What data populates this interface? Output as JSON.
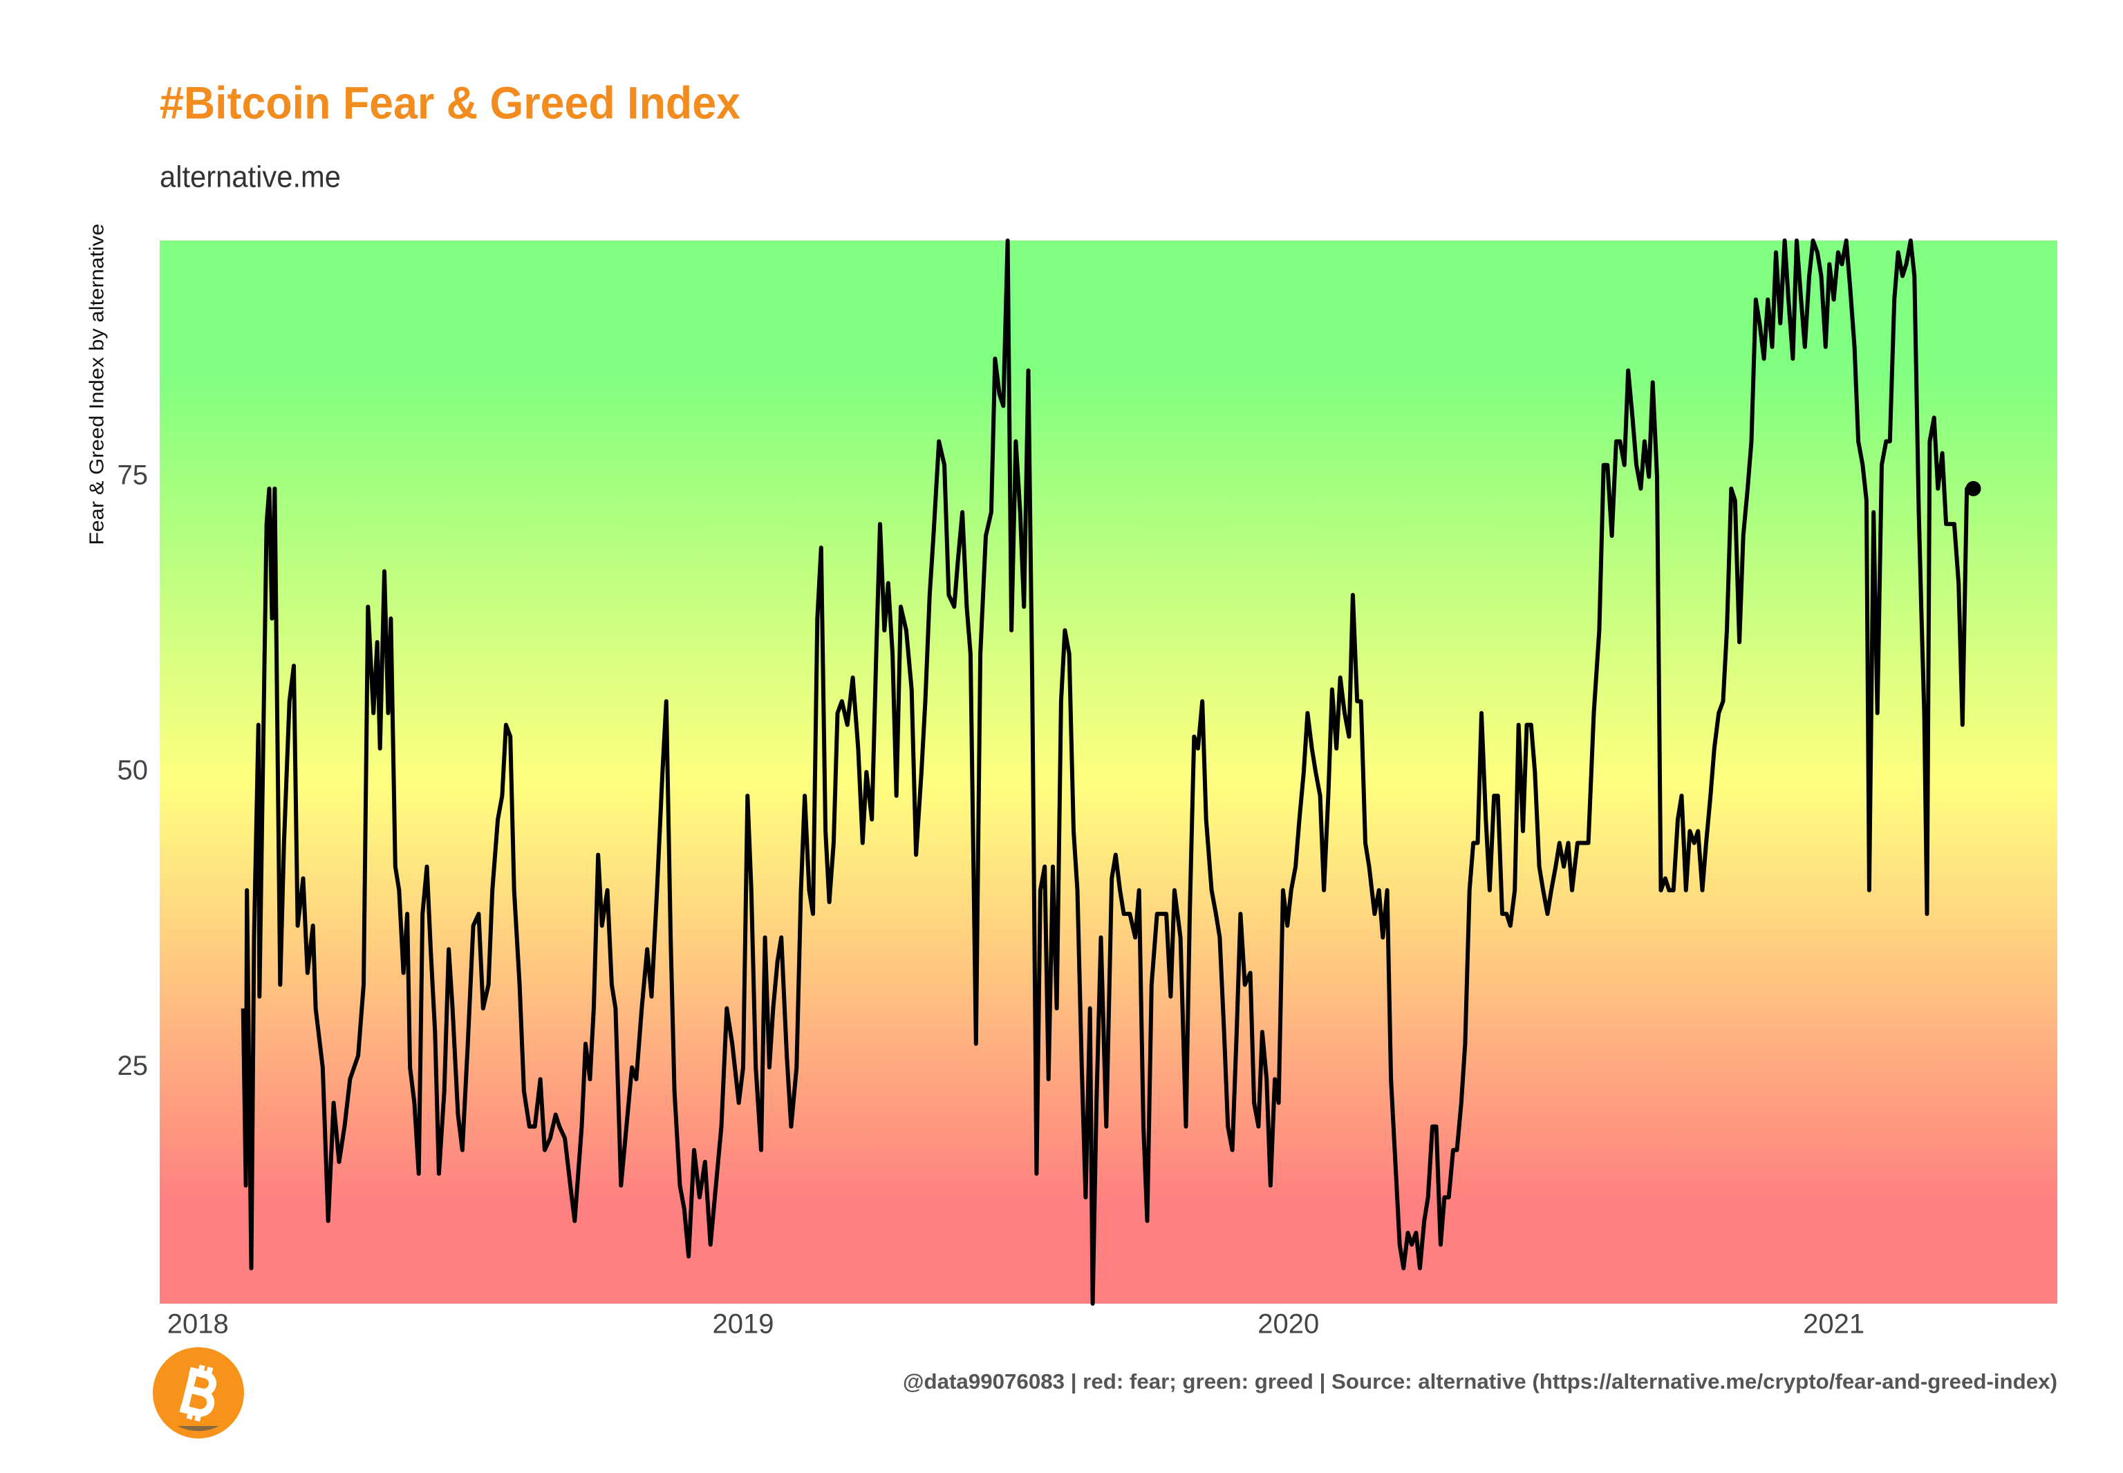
{
  "chart_data": {
    "type": "line",
    "title": "#Bitcoin Fear & Greed Index",
    "subtitle": "alternative.me",
    "y_label": "Fear & Greed Index by alternative",
    "caption": "@data99076083 | red: fear; green: greed | Source: alternative (https://alternative.me/crypto/fear-and-greed-index)",
    "color": "#000000",
    "title_color": "#f28c1e",
    "background_colors": [
      "#ff8080",
      "#ffff80",
      "#80ff80"
    ],
    "grid": false,
    "last_point_marker": true,
    "xlim": [
      2017.93,
      2021.41
    ],
    "xticks": [
      2018,
      2019,
      2020,
      2021
    ],
    "ylim": [
      5,
      95
    ],
    "yticks": [
      25,
      50,
      75
    ],
    "x": [
      2018.083,
      2018.088,
      2018.09,
      2018.098,
      2018.103,
      2018.111,
      2018.113,
      2018.126,
      2018.131,
      2018.136,
      2018.141,
      2018.151,
      2018.158,
      2018.168,
      2018.176,
      2018.183,
      2018.193,
      2018.201,
      2018.211,
      2018.216,
      2018.229,
      2018.239,
      2018.249,
      2018.259,
      2018.269,
      2018.279,
      2018.294,
      2018.304,
      2018.312,
      2018.322,
      2018.329,
      2018.334,
      2018.342,
      2018.349,
      2018.354,
      2018.362,
      2018.369,
      2018.377,
      2018.384,
      2018.389,
      2018.397,
      2018.405,
      2018.412,
      2018.42,
      2018.427,
      2018.435,
      2018.442,
      2018.452,
      2018.46,
      2018.467,
      2018.477,
      2018.485,
      2018.495,
      2018.505,
      2018.515,
      2018.523,
      2018.533,
      2018.54,
      2018.55,
      2018.558,
      2018.565,
      2018.573,
      2018.58,
      2018.59,
      2018.598,
      2018.608,
      2018.618,
      2018.628,
      2018.636,
      2018.646,
      2018.656,
      2018.663,
      2018.673,
      2018.683,
      2018.691,
      2018.704,
      2018.711,
      2018.719,
      2018.726,
      2018.734,
      2018.741,
      2018.751,
      2018.759,
      2018.766,
      2018.776,
      2018.786,
      2018.796,
      2018.804,
      2018.814,
      2018.824,
      2018.832,
      2018.842,
      2018.852,
      2018.859,
      2018.867,
      2018.874,
      2018.884,
      2018.892,
      2018.9,
      2018.91,
      2018.92,
      2018.93,
      2018.94,
      2018.95,
      2018.96,
      2018.97,
      2018.98,
      2018.992,
      2019.0,
      2019.008,
      2019.015,
      2019.023,
      2019.033,
      2019.04,
      2019.048,
      2019.055,
      2019.063,
      2019.07,
      2019.08,
      2019.088,
      2019.098,
      2019.106,
      2019.113,
      2019.121,
      2019.128,
      2019.136,
      2019.143,
      2019.151,
      2019.158,
      2019.166,
      2019.173,
      2019.181,
      2019.191,
      2019.201,
      2019.211,
      2019.219,
      2019.226,
      2019.236,
      2019.244,
      2019.251,
      2019.259,
      2019.266,
      2019.274,
      2019.281,
      2019.289,
      2019.299,
      2019.309,
      2019.317,
      2019.327,
      2019.334,
      2019.342,
      2019.349,
      2019.359,
      2019.369,
      2019.377,
      2019.387,
      2019.394,
      2019.402,
      2019.41,
      2019.417,
      2019.427,
      2019.435,
      2019.445,
      2019.455,
      2019.462,
      2019.47,
      2019.477,
      2019.485,
      2019.492,
      2019.5,
      2019.508,
      2019.515,
      2019.523,
      2019.53,
      2019.538,
      2019.545,
      2019.553,
      2019.56,
      2019.568,
      2019.575,
      2019.583,
      2019.59,
      2019.598,
      2019.606,
      2019.613,
      2019.621,
      2019.628,
      2019.636,
      2019.641,
      2019.648,
      2019.656,
      2019.666,
      2019.676,
      2019.683,
      2019.691,
      2019.698,
      2019.709,
      2019.719,
      2019.726,
      2019.734,
      2019.741,
      2019.749,
      2019.759,
      2019.766,
      2019.776,
      2019.784,
      2019.791,
      2019.802,
      2019.812,
      2019.819,
      2019.827,
      2019.834,
      2019.842,
      2019.849,
      2019.859,
      2019.867,
      2019.874,
      2019.882,
      2019.889,
      2019.897,
      2019.905,
      2019.912,
      2019.92,
      2019.93,
      2019.937,
      2019.945,
      2019.952,
      2019.96,
      2019.967,
      2019.975,
      2019.982,
      2019.99,
      2019.998,
      2020.005,
      2020.013,
      2020.02,
      2020.028,
      2020.035,
      2020.043,
      2020.05,
      2020.058,
      2020.065,
      2020.073,
      2020.08,
      2020.088,
      2020.095,
      2020.103,
      2020.111,
      2020.118,
      2020.126,
      2020.133,
      2020.141,
      2020.148,
      2020.158,
      2020.166,
      2020.173,
      2020.181,
      2020.188,
      2020.196,
      2020.204,
      2020.211,
      2020.219,
      2020.226,
      2020.234,
      2020.241,
      2020.249,
      2020.256,
      2020.264,
      2020.271,
      2020.279,
      2020.286,
      2020.294,
      2020.302,
      2020.309,
      2020.317,
      2020.324,
      2020.332,
      2020.339,
      2020.347,
      2020.354,
      2020.362,
      2020.369,
      2020.377,
      2020.384,
      2020.392,
      2020.4,
      2020.407,
      2020.415,
      2020.422,
      2020.43,
      2020.437,
      2020.445,
      2020.452,
      2020.46,
      2020.467,
      2020.475,
      2020.482,
      2020.49,
      2020.497,
      2020.505,
      2020.513,
      2020.52,
      2020.53,
      2020.538,
      2020.55,
      2020.56,
      2020.57,
      2020.578,
      2020.585,
      2020.593,
      2020.601,
      2020.608,
      2020.616,
      2020.623,
      2020.631,
      2020.638,
      2020.646,
      2020.653,
      2020.661,
      2020.668,
      2020.676,
      2020.683,
      2020.691,
      2020.698,
      2020.706,
      2020.714,
      2020.721,
      2020.729,
      2020.736,
      2020.744,
      2020.751,
      2020.759,
      2020.766,
      2020.774,
      2020.781,
      2020.789,
      2020.797,
      2020.804,
      2020.812,
      2020.819,
      2020.827,
      2020.834,
      2020.842,
      2020.849,
      2020.857,
      2020.864,
      2020.872,
      2020.879,
      2020.887,
      2020.894,
      2020.902,
      2020.91,
      2020.917,
      2020.925,
      2020.932,
      2020.94,
      2020.947,
      2020.955,
      2020.962,
      2020.97,
      2020.977,
      2020.985,
      2020.992,
      2021.0,
      2021.008,
      2021.015,
      2021.023,
      2021.03,
      2021.038,
      2021.045,
      2021.053,
      2021.06,
      2021.065,
      2021.073,
      2021.08,
      2021.088,
      2021.096,
      2021.103,
      2021.111,
      2021.118,
      2021.126,
      2021.133,
      2021.141,
      2021.148,
      2021.156,
      2021.161,
      2021.166,
      2021.171,
      2021.176,
      2021.184,
      2021.191,
      2021.199,
      2021.206,
      2021.214,
      2021.221,
      2021.229,
      2021.236,
      2021.244,
      2021.251,
      2021.256
    ],
    "values": [
      30,
      15,
      40,
      8,
      36,
      54,
      31,
      71,
      74,
      63,
      74,
      32,
      44,
      56,
      59,
      37,
      41,
      33,
      37,
      30,
      25,
      12,
      22,
      17,
      20,
      24,
      26,
      32,
      64,
      55,
      61,
      52,
      67,
      55,
      63,
      42,
      40,
      33,
      38,
      25,
      22,
      16,
      38,
      42,
      35,
      28,
      16,
      23,
      35,
      30,
      21,
      18,
      27,
      37,
      38,
      30,
      32,
      40,
      46,
      48,
      54,
      53,
      40,
      32,
      23,
      20,
      20,
      24,
      18,
      19,
      21,
      20,
      19,
      15,
      12,
      20,
      27,
      24,
      30,
      43,
      37,
      40,
      32,
      30,
      15,
      20,
      25,
      24,
      30,
      35,
      31,
      40,
      50,
      56,
      36,
      23,
      15,
      13,
      9,
      18,
      14,
      17,
      10,
      15,
      20,
      30,
      27,
      22,
      25,
      48,
      40,
      25,
      18,
      36,
      25,
      30,
      34,
      36,
      26,
      20,
      25,
      40,
      48,
      40,
      38,
      63,
      69,
      45,
      39,
      44,
      55,
      56,
      54,
      58,
      52,
      44,
      50,
      46,
      60,
      71,
      62,
      66,
      60,
      48,
      64,
      62,
      57,
      43,
      50,
      56,
      65,
      70,
      78,
      76,
      65,
      64,
      68,
      72,
      64,
      60,
      27,
      60,
      70,
      72,
      85,
      82,
      81,
      95,
      62,
      78,
      72,
      64,
      84,
      58,
      16,
      40,
      42,
      24,
      42,
      30,
      56,
      62,
      60,
      45,
      40,
      25,
      14,
      30,
      5,
      22,
      36,
      20,
      41,
      43,
      40,
      38,
      38,
      36,
      40,
      20,
      12,
      32,
      38,
      38,
      38,
      31,
      40,
      36,
      20,
      38,
      53,
      52,
      56,
      46,
      40,
      38,
      36,
      28,
      20,
      18,
      28,
      38,
      32,
      33,
      22,
      20,
      28,
      24,
      15,
      24,
      22,
      40,
      37,
      40,
      42,
      46,
      50,
      55,
      52,
      50,
      48,
      40,
      48,
      57,
      52,
      58,
      55,
      53,
      65,
      56,
      56,
      44,
      42,
      38,
      40,
      36,
      40,
      24,
      17,
      10,
      8,
      11,
      10,
      11,
      8,
      12,
      14,
      20,
      20,
      10,
      14,
      14,
      18,
      18,
      22,
      27,
      40,
      44,
      44,
      55,
      46,
      40,
      48,
      48,
      38,
      38,
      37,
      40,
      54,
      45,
      54,
      54,
      50,
      42,
      40,
      38,
      40,
      42,
      44,
      42,
      44,
      40,
      44,
      44,
      44,
      55,
      62,
      76,
      76,
      70,
      78,
      78,
      76,
      84,
      80,
      76,
      74,
      78,
      75,
      83,
      75,
      40,
      41,
      40,
      40,
      46,
      48,
      40,
      45,
      44,
      45,
      40,
      44,
      48,
      52,
      55,
      56,
      62,
      74,
      73,
      61,
      70,
      74,
      78,
      90,
      88,
      85,
      90,
      86,
      94,
      88,
      95,
      90,
      85,
      95,
      90,
      86,
      92,
      95,
      94,
      92,
      86,
      93,
      90,
      94,
      93,
      95,
      91,
      86,
      78,
      76,
      73,
      40,
      72,
      55,
      76,
      78,
      78,
      90,
      94,
      92,
      93,
      95,
      92,
      72,
      63,
      55,
      38,
      78,
      80,
      74,
      77,
      71,
      71,
      71,
      66,
      54,
      74,
      74,
      74
    ]
  }
}
